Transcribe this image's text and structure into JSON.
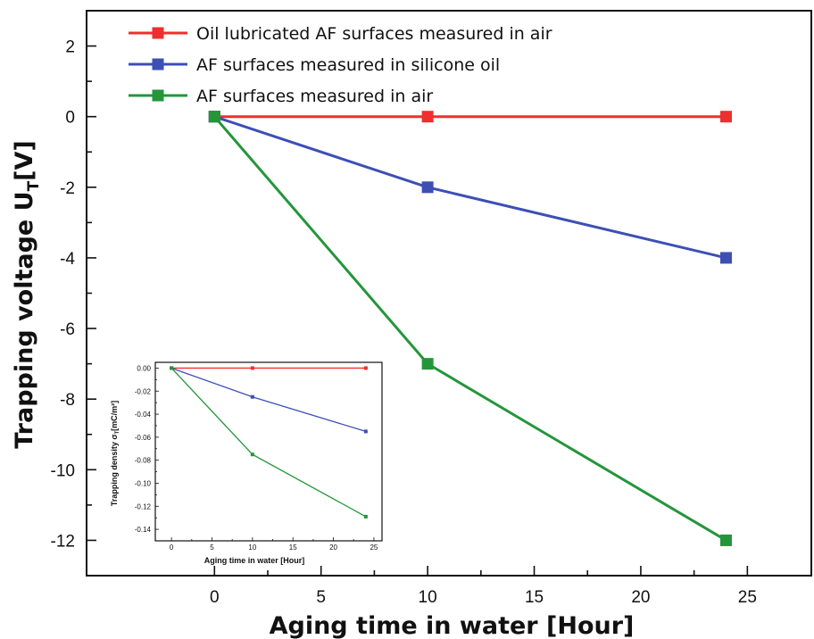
{
  "chart_data": [
    {
      "type": "line",
      "xlabel": "Aging time in water [Hour]",
      "ylabel_main": "Trapping voltage U",
      "ylabel_sub": "T",
      "ylabel_unit": "[V]",
      "x": [
        0,
        10,
        24
      ],
      "xlim": [
        -6,
        28
      ],
      "ylim": [
        -13,
        3
      ],
      "xticks": [
        "0",
        "5",
        "10",
        "15",
        "20",
        "25"
      ],
      "yticks": [
        "2",
        "0",
        "-2",
        "-4",
        "-6",
        "-8",
        "-10",
        "-12"
      ],
      "legend_position": "top-left",
      "series": [
        {
          "name": "Oil lubricated AF surfaces measured in air",
          "color": "#ee2f2f",
          "values": [
            0,
            0,
            0
          ]
        },
        {
          "name": "AF surfaces measured in silicone oil",
          "color": "#3d4fb5",
          "values": [
            0,
            -2,
            -4
          ]
        },
        {
          "name": "AF surfaces measured in air",
          "color": "#23963a",
          "values": [
            0,
            -7,
            -12
          ]
        }
      ]
    },
    {
      "type": "line",
      "xlabel": "Aging time in water [Hour]",
      "ylabel_main": "Trapping density σ",
      "ylabel_sub": "T",
      "ylabel_unit": "[mC/m²]",
      "x": [
        0,
        10,
        24
      ],
      "xlim": [
        -2,
        26
      ],
      "ylim": [
        -0.15,
        0.005
      ],
      "xticks": [
        "0",
        "5",
        "10",
        "15",
        "20",
        "25"
      ],
      "yticks": [
        "0.00",
        "-0.02",
        "-0.04",
        "-0.06",
        "-0.08",
        "-0.10",
        "-0.12",
        "-0.14"
      ],
      "series": [
        {
          "color": "#ee2f2f",
          "values": [
            0,
            0,
            0
          ]
        },
        {
          "color": "#3d4fb5",
          "values": [
            0,
            -0.025,
            -0.055
          ]
        },
        {
          "color": "#23963a",
          "values": [
            0,
            -0.075,
            -0.129
          ]
        }
      ]
    }
  ]
}
